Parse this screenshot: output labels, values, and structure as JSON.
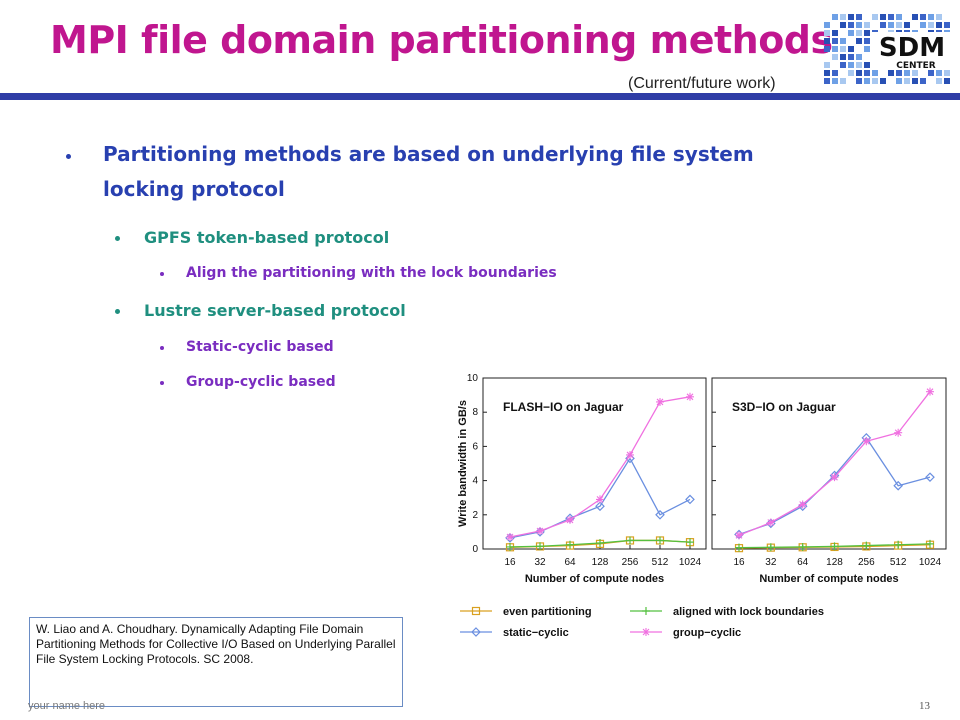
{
  "slide": {
    "title": "MPI file domain partitioning methods",
    "subtitle": "(Current/future work)",
    "logo": {
      "line1": "SDM",
      "line2": "CENTER"
    },
    "bullets": {
      "main_line1": "Partitioning methods are based on underlying file system",
      "main_line2": "locking protocol",
      "gpfs": "GPFS token-based protocol",
      "gpfs_sub": "Align the partitioning with the lock boundaries",
      "lustre": "Lustre server-based protocol",
      "lustre_sub1": "Static-cyclic based",
      "lustre_sub2": "Group-cyclic based"
    },
    "reference": "W. Liao and A. Choudhary. Dynamically Adapting File Domain Partitioning Methods for Collective I/O Based on Underlying Parallel File System Locking Protocols. SC 2008.",
    "footer_left": "your name here",
    "page_number": "13",
    "colors": {
      "title": "#c0168f",
      "rule": "#2f3da6",
      "level1": "#2840b0",
      "level2": "#1f8f7f",
      "level3": "#7a2dc0"
    }
  },
  "chart_data": [
    {
      "type": "line",
      "title": "FLASH−IO on Jaguar",
      "ylabel": "Write bandwidth in GB/s",
      "xlabel": "Number of compute nodes",
      "categories": [
        "16",
        "32",
        "64",
        "128",
        "256",
        "512",
        "1024"
      ],
      "yticks": [
        "0",
        "2",
        "4",
        "6",
        "8",
        "10"
      ],
      "ylim": [
        0,
        10
      ],
      "series": [
        {
          "name": "even partitioning",
          "color": "#d9a020",
          "marker": "square",
          "values": [
            0.1,
            0.15,
            0.2,
            0.3,
            0.5,
            0.5,
            0.4
          ]
        },
        {
          "name": "aligned with lock boundaries",
          "color": "#55c040",
          "marker": "plus",
          "values": [
            0.12,
            0.16,
            0.25,
            0.35,
            0.5,
            0.5,
            0.4
          ]
        },
        {
          "name": "static−cyclic",
          "color": "#6a8fe0",
          "marker": "diamond",
          "values": [
            0.65,
            1.0,
            1.8,
            2.5,
            5.3,
            2.0,
            2.9
          ]
        },
        {
          "name": "group−cyclic",
          "color": "#f070e0",
          "marker": "asterisk",
          "values": [
            0.7,
            1.05,
            1.7,
            2.9,
            5.5,
            8.6,
            8.9
          ]
        }
      ]
    },
    {
      "type": "line",
      "title": "S3D−IO on Jaguar",
      "xlabel": "Number of compute nodes",
      "categories": [
        "16",
        "32",
        "64",
        "128",
        "256",
        "512",
        "1024"
      ],
      "ylim": [
        0,
        10
      ],
      "series": [
        {
          "name": "even partitioning",
          "color": "#d9a020",
          "marker": "square",
          "values": [
            0.05,
            0.08,
            0.1,
            0.12,
            0.15,
            0.2,
            0.25
          ]
        },
        {
          "name": "aligned with lock boundaries",
          "color": "#55c040",
          "marker": "plus",
          "values": [
            0.08,
            0.1,
            0.12,
            0.15,
            0.2,
            0.25,
            0.3
          ]
        },
        {
          "name": "static−cyclic",
          "color": "#6a8fe0",
          "marker": "diamond",
          "values": [
            0.85,
            1.5,
            2.5,
            4.3,
            6.5,
            3.7,
            4.2
          ]
        },
        {
          "name": "group−cyclic",
          "color": "#f070e0",
          "marker": "asterisk",
          "values": [
            0.8,
            1.55,
            2.6,
            4.2,
            6.3,
            6.8,
            9.2
          ]
        }
      ]
    }
  ]
}
